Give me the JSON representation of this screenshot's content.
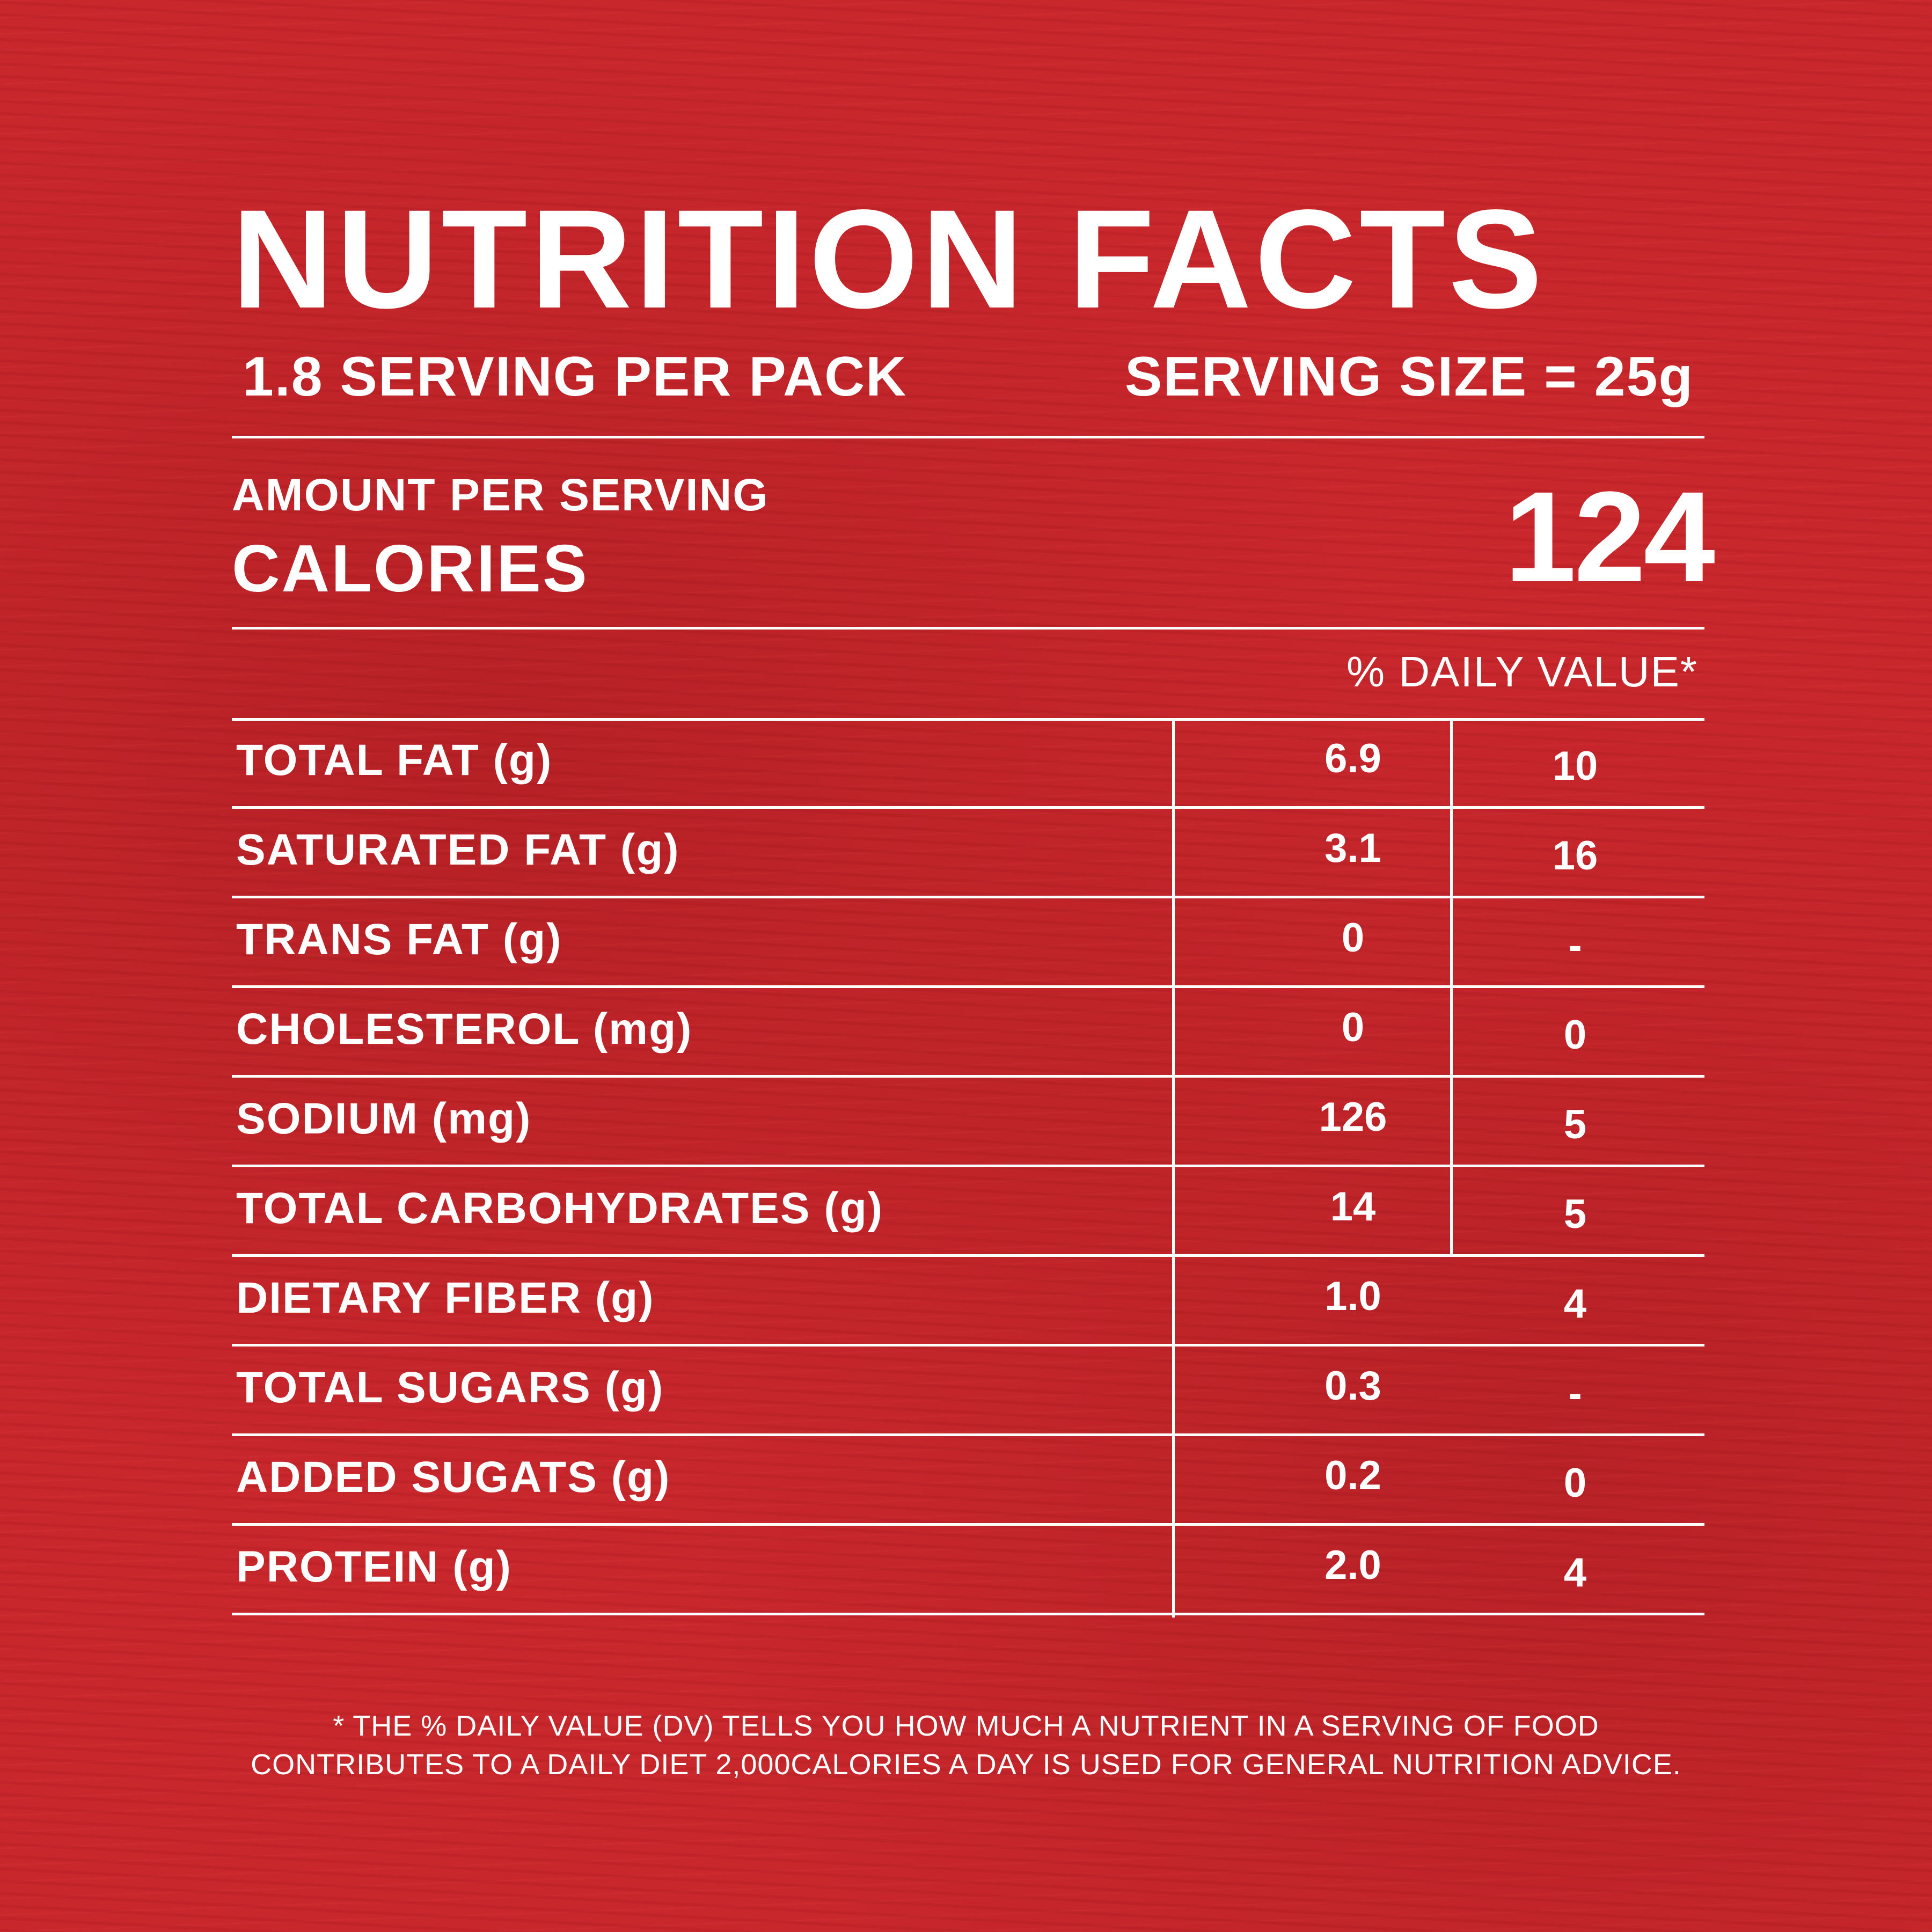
{
  "colors": {
    "background": "#c8272c",
    "text": "#ffffff"
  },
  "title": "NUTRITION FACTS",
  "servings_per_pack": "1.8 SERVING PER PACK",
  "serving_size": "SERVING SIZE = 25g",
  "amount_per_serving": "AMOUNT PER SERVING",
  "calories_label": "CALORIES",
  "calories_value": "124",
  "daily_value_header": "% DAILY VALUE*",
  "nutrients": [
    {
      "label": "TOTAL FAT (g)",
      "amount": "6.9",
      "dv": "10"
    },
    {
      "label": "SATURATED FAT (g)",
      "amount": "3.1",
      "dv": "16"
    },
    {
      "label": "TRANS FAT (g)",
      "amount": "0",
      "dv": "-"
    },
    {
      "label": "CHOLESTEROL (mg)",
      "amount": "0",
      "dv": "0"
    },
    {
      "label": "SODIUM (mg)",
      "amount": "126",
      "dv": "5"
    },
    {
      "label": "TOTAL CARBOHYDRATES (g)",
      "amount": "14",
      "dv": "5"
    },
    {
      "label": "DIETARY FIBER (g)",
      "amount": "1.0",
      "dv": "4"
    },
    {
      "label": "TOTAL SUGARS (g)",
      "amount": "0.3",
      "dv": "-"
    },
    {
      "label": "ADDED SUGATS (g)",
      "amount": "0.2",
      "dv": "0"
    },
    {
      "label": "PROTEIN (g)",
      "amount": "2.0",
      "dv": "4"
    }
  ],
  "footnote": {
    "line1": "* THE % DAILY VALUE (DV) TELLS YOU HOW MUCH A NUTRIENT IN A SERVING OF FOOD",
    "line2": "CONTRIBUTES TO A DAILY DIET 2,000CALORIES A DAY IS USED FOR GENERAL NUTRITION ADVICE."
  }
}
